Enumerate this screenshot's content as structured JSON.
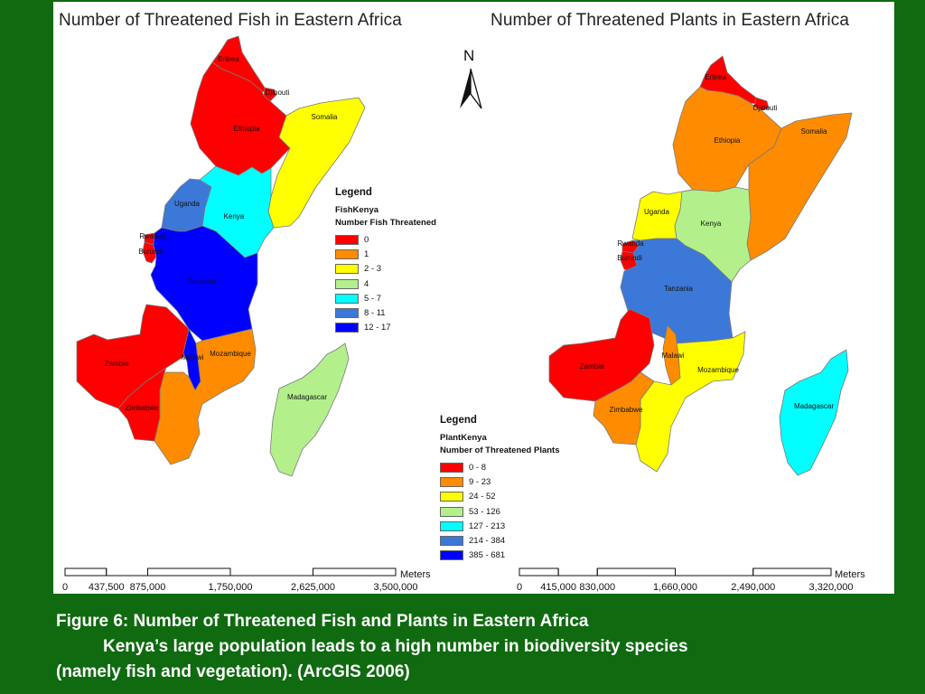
{
  "fish_map": {
    "title": "Number of Threatened Fish in Eastern Africa",
    "countries": [
      {
        "key": "eritrea",
        "label": "Eritrea",
        "color": "#ff0000"
      },
      {
        "key": "djibouti",
        "label": "Djibouti",
        "color": "#ff0000"
      },
      {
        "key": "ethiopia",
        "label": "Ethiopia",
        "color": "#ff0000"
      },
      {
        "key": "somalia",
        "label": "Somalia",
        "color": "#ffff00"
      },
      {
        "key": "uganda",
        "label": "Uganda",
        "color": "#3c78d8"
      },
      {
        "key": "kenya",
        "label": "Kenya",
        "color": "#00ffff"
      },
      {
        "key": "rwanda",
        "label": "Rwanda",
        "color": "#ff0000"
      },
      {
        "key": "burundi",
        "label": "Burundi",
        "color": "#ff0000"
      },
      {
        "key": "tanzania",
        "label": "Tanzania",
        "color": "#0000ff"
      },
      {
        "key": "zambia",
        "label": "Zambia",
        "color": "#ff0000"
      },
      {
        "key": "malawi",
        "label": "Malawi",
        "color": "#0000ff"
      },
      {
        "key": "mozambique",
        "label": "Mozambique",
        "color": "#ff8c00"
      },
      {
        "key": "zimbabwe",
        "label": "Zimbabwe",
        "color": "#ff0000"
      },
      {
        "key": "madagascar",
        "label": "Madagascar",
        "color": "#b3f08c"
      }
    ],
    "legend": {
      "title": "Legend",
      "layer": "FishKenya",
      "field": "Number Fish Threatened",
      "classes": [
        {
          "label": "0",
          "color": "#ff0000"
        },
        {
          "label": "1",
          "color": "#ff8c00"
        },
        {
          "label": "2 - 3",
          "color": "#ffff00"
        },
        {
          "label": "4",
          "color": "#b3f08c"
        },
        {
          "label": "5 - 7",
          "color": "#00ffff"
        },
        {
          "label": "8 - 11",
          "color": "#3c78d8"
        },
        {
          "label": "12 - 17",
          "color": "#0000ff"
        }
      ]
    },
    "scale": {
      "ticks": [
        "0",
        "437,500",
        "875,000",
        "1,750,000",
        "2,625,000",
        "3,500,000"
      ],
      "unit": "Meters"
    }
  },
  "plant_map": {
    "title": "Number of Threatened Plants in Eastern Africa",
    "countries": [
      {
        "key": "eritrea",
        "label": "Eritrea",
        "color": "#ff0000"
      },
      {
        "key": "djibouti",
        "label": "Djibouti",
        "color": "#ff0000"
      },
      {
        "key": "ethiopia",
        "label": "Ethiopia",
        "color": "#ff8c00"
      },
      {
        "key": "somalia",
        "label": "Somalia",
        "color": "#ff8c00"
      },
      {
        "key": "uganda",
        "label": "Uganda",
        "color": "#ffff00"
      },
      {
        "key": "kenya",
        "label": "Kenya",
        "color": "#b3f08c"
      },
      {
        "key": "rwanda",
        "label": "Rwanda",
        "color": "#ff0000"
      },
      {
        "key": "burundi",
        "label": "Burundi",
        "color": "#ff0000"
      },
      {
        "key": "tanzania",
        "label": "Tanzania",
        "color": "#3c78d8"
      },
      {
        "key": "zambia",
        "label": "Zambia",
        "color": "#ff0000"
      },
      {
        "key": "malawi",
        "label": "Malawi",
        "color": "#ff8c00"
      },
      {
        "key": "mozambique",
        "label": "Mozambique",
        "color": "#ffff00"
      },
      {
        "key": "zimbabwe",
        "label": "Zimbabwe",
        "color": "#ff8c00"
      },
      {
        "key": "madagascar",
        "label": "Madagascar",
        "color": "#00ffff"
      }
    ],
    "legend": {
      "title": "Legend",
      "layer": "PlantKenya",
      "field": "Number of Threatened Plants",
      "classes": [
        {
          "label": "0 - 8",
          "color": "#ff0000"
        },
        {
          "label": "9 - 23",
          "color": "#ff8c00"
        },
        {
          "label": "24 - 52",
          "color": "#ffff00"
        },
        {
          "label": "53 - 126",
          "color": "#b3f08c"
        },
        {
          "label": "127 - 213",
          "color": "#00ffff"
        },
        {
          "label": "214 - 384",
          "color": "#3c78d8"
        },
        {
          "label": "385 - 681",
          "color": "#0000ff"
        }
      ]
    },
    "scale": {
      "ticks": [
        "0",
        "415,000",
        "830,000",
        "1,660,000",
        "2,490,000",
        "3,320,000"
      ],
      "unit": "Meters"
    }
  },
  "north_arrow": {
    "label": "N"
  },
  "caption": {
    "line1": "Figure 6: Number of Threatened Fish and Plants in Eastern Africa",
    "line2": "Kenya’s large population leads to a high number in biodiversity species",
    "line3": "(namely fish and vegetation). (ArcGIS 2006)"
  }
}
